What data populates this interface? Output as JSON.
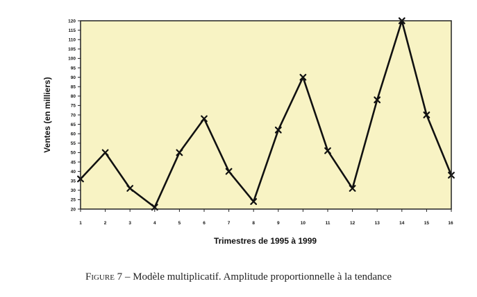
{
  "caption": {
    "label": "Figure 7",
    "dash": " – ",
    "text": "Modèle multiplicatif. Amplitude proportionnelle à la tendance"
  },
  "colors": {
    "plot_background": "#f8f3c4",
    "line": "#111111",
    "frame": "#222222"
  },
  "chart_data": {
    "type": "line",
    "title": "",
    "xlabel": "Trimestres de 1995 à 1999",
    "ylabel": "Ventes (en milliers)",
    "x": [
      1,
      2,
      3,
      4,
      5,
      6,
      7,
      8,
      9,
      10,
      11,
      12,
      13,
      14,
      15,
      16
    ],
    "x_tick_labels": [
      "1",
      "2",
      "3",
      "4",
      "5",
      "6",
      "7",
      "8",
      "9",
      "10",
      "11",
      "12",
      "13",
      "14",
      "15",
      "16"
    ],
    "y_tick_labels": [
      "20",
      "25",
      "30",
      "35",
      "40",
      "45",
      "50",
      "55",
      "60",
      "65",
      "70",
      "75",
      "80",
      "85",
      "90",
      "95",
      "100",
      "105",
      "110",
      "115",
      "120"
    ],
    "values": [
      36,
      50,
      31,
      21,
      50,
      68,
      40,
      24,
      62,
      90,
      51,
      31,
      78,
      120,
      70,
      38
    ],
    "xlim": [
      1,
      16
    ],
    "ylim": [
      20,
      120
    ],
    "y_tick_step": 5,
    "grid": false,
    "marker": "x"
  }
}
